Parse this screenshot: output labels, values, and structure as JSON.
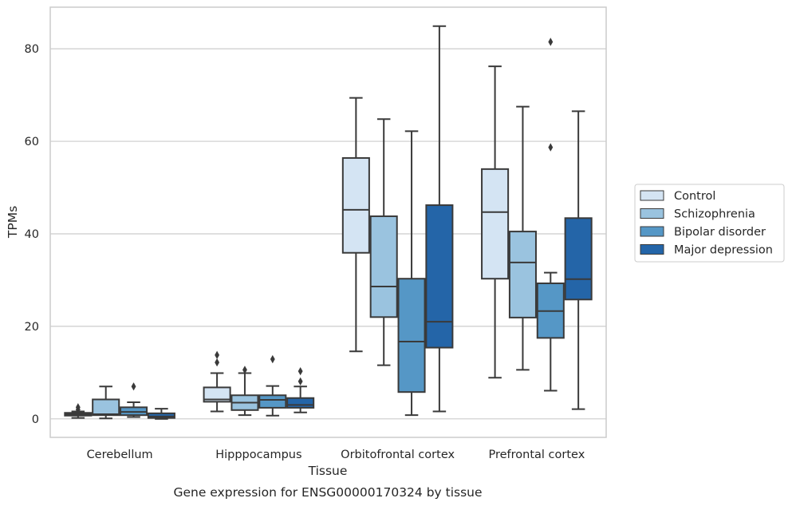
{
  "chart_data": {
    "type": "box",
    "title": "",
    "caption": "Gene expression for ENSG00000170324 by tissue",
    "xlabel": "Tissue",
    "ylabel": "TPMs",
    "ylim": [
      -4,
      89
    ],
    "yticks": [
      0,
      20,
      40,
      60,
      80
    ],
    "grid": "horizontal",
    "legend_position": "right",
    "categories": [
      "Cerebellum",
      "Hipppocampus",
      "Orbitofrontal cortex",
      "Prefrontal cortex"
    ],
    "series": [
      {
        "name": "Control",
        "color": "#d4e4f3",
        "boxes": [
          {
            "min": 0.2,
            "q1": 0.7,
            "median": 1.0,
            "q3": 1.3,
            "max": 1.6,
            "outliers": [
              2.0,
              2.5
            ]
          },
          {
            "min": 1.6,
            "q1": 3.7,
            "median": 4.2,
            "q3": 6.8,
            "max": 9.9,
            "outliers": [
              12.2,
              13.8
            ]
          },
          {
            "min": 14.6,
            "q1": 35.9,
            "median": 45.2,
            "q3": 56.4,
            "max": 69.4,
            "outliers": []
          },
          {
            "min": 8.9,
            "q1": 30.3,
            "median": 44.7,
            "q3": 54.0,
            "max": 76.2,
            "outliers": []
          }
        ]
      },
      {
        "name": "Schizophrenia",
        "color": "#9ac3df",
        "boxes": [
          {
            "min": 0.1,
            "q1": 0.8,
            "median": 1.0,
            "q3": 4.2,
            "max": 7.0,
            "outliers": []
          },
          {
            "min": 0.8,
            "q1": 1.9,
            "median": 3.5,
            "q3": 5.1,
            "max": 9.9,
            "outliers": [
              10.6
            ]
          },
          {
            "min": 11.6,
            "q1": 22.0,
            "median": 28.6,
            "q3": 43.8,
            "max": 64.8,
            "outliers": []
          },
          {
            "min": 10.6,
            "q1": 21.9,
            "median": 33.8,
            "q3": 40.5,
            "max": 67.5,
            "outliers": []
          }
        ]
      },
      {
        "name": "Bipolar disorder",
        "color": "#5597c6",
        "boxes": [
          {
            "min": 0.4,
            "q1": 0.8,
            "median": 1.5,
            "q3": 2.5,
            "max": 3.6,
            "outliers": [
              7.0
            ]
          },
          {
            "min": 0.7,
            "q1": 2.4,
            "median": 4.1,
            "q3": 5.1,
            "max": 7.1,
            "outliers": [
              12.9
            ]
          },
          {
            "min": 0.8,
            "q1": 5.8,
            "median": 16.7,
            "q3": 30.3,
            "max": 62.2,
            "outliers": []
          },
          {
            "min": 6.1,
            "q1": 17.5,
            "median": 23.3,
            "q3": 29.3,
            "max": 31.6,
            "outliers": [
              58.7,
              81.5
            ]
          }
        ]
      },
      {
        "name": "Major depression",
        "color": "#2465a8",
        "boxes": [
          {
            "min": 0.0,
            "q1": 0.2,
            "median": 0.5,
            "q3": 1.2,
            "max": 2.2,
            "outliers": []
          },
          {
            "min": 1.4,
            "q1": 2.4,
            "median": 3.0,
            "q3": 4.5,
            "max": 7.0,
            "outliers": [
              8.1,
              10.3
            ]
          },
          {
            "min": 1.6,
            "q1": 15.4,
            "median": 21.0,
            "q3": 46.2,
            "max": 84.9,
            "outliers": []
          },
          {
            "min": 2.1,
            "q1": 25.8,
            "median": 30.2,
            "q3": 43.4,
            "max": 66.5,
            "outliers": []
          }
        ]
      }
    ]
  }
}
